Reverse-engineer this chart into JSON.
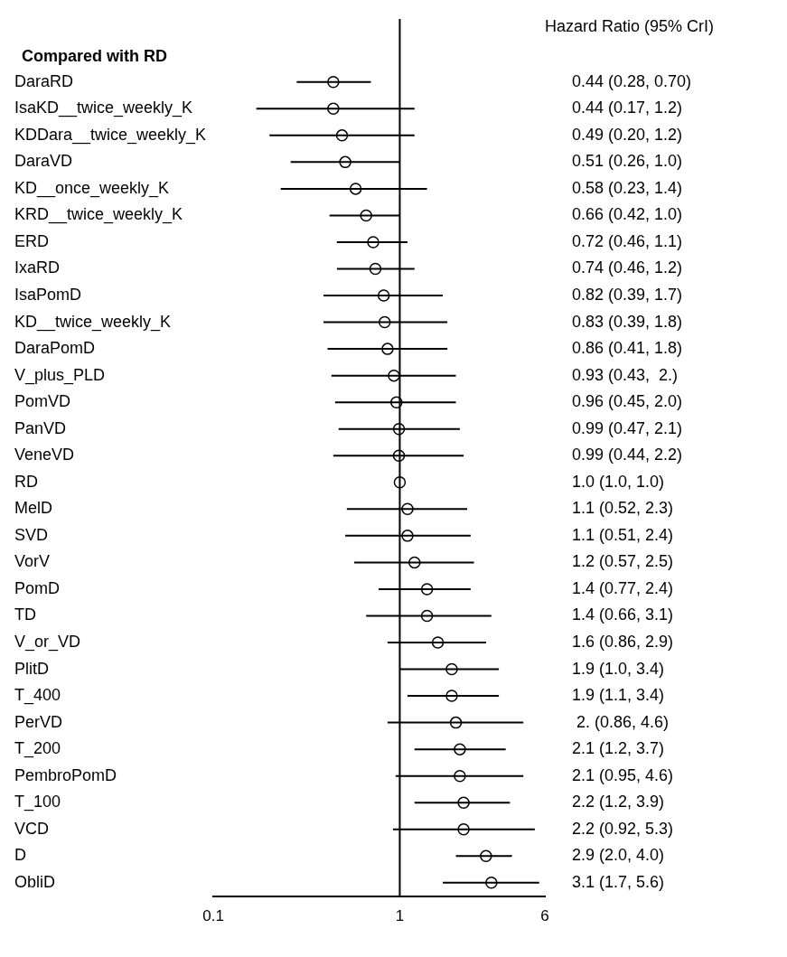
{
  "chart_data": {
    "type": "scatter",
    "orientation": "horizontal",
    "title": "Hazard Ratio (95% CrI)",
    "subtitle": "Compared with RD",
    "categories": [
      "DaraRD",
      "IsaKD__twice_weekly_K",
      "KDDara__twice_weekly_K",
      "DaraVD",
      "KD__once_weekly_K",
      "KRD__twice_weekly_K",
      "ERD",
      "IxaRD",
      "IsaPomD",
      "KD__twice_weekly_K",
      "DaraPomD",
      "V_plus_PLD",
      "PomVD",
      "PanVD",
      "VeneVD",
      "RD",
      "MelD",
      "SVD",
      "VorV",
      "PomD",
      "TD",
      "V_or_VD",
      "PlitD",
      "T_400",
      "PerVD",
      "T_200",
      "PembroPomD",
      "T_100",
      "VCD",
      "D",
      "ObliD"
    ],
    "series": [
      {
        "color": "#000000",
        "values": [
          0.44,
          0.44,
          0.49,
          0.51,
          0.58,
          0.66,
          0.72,
          0.74,
          0.82,
          0.83,
          0.86,
          0.93,
          0.96,
          0.99,
          0.99,
          1.0,
          1.1,
          1.1,
          1.2,
          1.4,
          1.4,
          1.6,
          1.9,
          1.9,
          2,
          2.1,
          2.1,
          2.2,
          2.2,
          2.9,
          3.1
        ],
        "errors": [
          [
            0.28,
            0.7
          ],
          [
            0.17,
            1.2
          ],
          [
            0.2,
            1.2
          ],
          [
            0.26,
            1.0
          ],
          [
            0.23,
            1.4
          ],
          [
            0.42,
            1.0
          ],
          [
            0.46,
            1.1
          ],
          [
            0.46,
            1.2
          ],
          [
            0.39,
            1.7
          ],
          [
            0.39,
            1.8
          ],
          [
            0.41,
            1.8
          ],
          [
            0.43,
            2
          ],
          [
            0.45,
            2.0
          ],
          [
            0.47,
            2.1
          ],
          [
            0.44,
            2.2
          ],
          [
            1.0,
            1.0
          ],
          [
            0.52,
            2.3
          ],
          [
            0.51,
            2.4
          ],
          [
            0.57,
            2.5
          ],
          [
            0.77,
            2.4
          ],
          [
            0.66,
            3.1
          ],
          [
            0.86,
            2.9
          ],
          [
            1.0,
            3.4
          ],
          [
            1.1,
            3.4
          ],
          [
            0.86,
            4.6
          ],
          [
            1.2,
            3.7
          ],
          [
            0.95,
            4.6
          ],
          [
            1.2,
            3.9
          ],
          [
            0.92,
            5.3
          ],
          [
            2.0,
            4.0
          ],
          [
            1.7,
            5.6
          ]
        ]
      }
    ],
    "annotations": [
      "0.44 (0.28, 0.70)",
      "0.44 (0.17, 1.2)",
      "0.49 (0.20, 1.2)",
      "0.51 (0.26, 1.0)",
      "0.58 (0.23, 1.4)",
      "0.66 (0.42, 1.0)",
      "0.72 (0.46, 1.1)",
      "0.74 (0.46, 1.2)",
      "0.82 (0.39, 1.7)",
      "0.83 (0.39, 1.8)",
      "0.86 (0.41, 1.8)",
      "0.93 (0.43,  2.)",
      "0.96 (0.45, 2.0)",
      "0.99 (0.47, 2.1)",
      "0.99 (0.44, 2.2)",
      "1.0 (1.0, 1.0)",
      "1.1 (0.52, 2.3)",
      "1.1 (0.51, 2.4)",
      "1.2 (0.57, 2.5)",
      "1.4 (0.77, 2.4)",
      "1.4 (0.66, 3.1)",
      "1.6 (0.86, 2.9)",
      "1.9 (1.0, 3.4)",
      "1.9 (1.1, 3.4)",
      " 2. (0.86, 4.6)",
      "2.1 (1.2, 3.7)",
      "2.1 (0.95, 4.6)",
      "2.2 (1.2, 3.9)",
      "2.2 (0.92, 5.3)",
      "2.9 (2.0, 4.0)",
      "3.1 (1.7, 5.6)"
    ],
    "log": "x",
    "xlim": [
      0.1,
      6
    ],
    "xticks": [
      0.1,
      1,
      6
    ],
    "ref_lines": [
      {
        "axis": "x",
        "value": 1,
        "color": "#000000"
      }
    ],
    "marker": "circle",
    "grid": false,
    "legend": false
  }
}
